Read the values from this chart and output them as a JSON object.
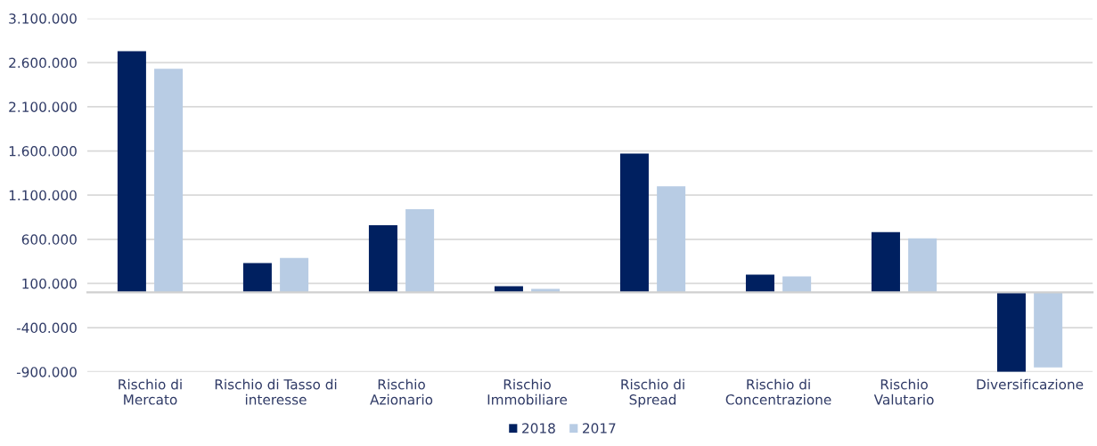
{
  "chart_data": {
    "type": "bar",
    "categories": [
      "Rischio di\nMercato",
      "Rischio di Tasso di\ninteresse",
      "Rischio\nAzionario",
      "Rischio\nImmobiliare",
      "Rischio di\nSpread",
      "Rischio di\nConcentrazione",
      "Rischio\nValutario",
      "Diversificazione"
    ],
    "series": [
      {
        "name": "2018",
        "color": "#002060",
        "values": [
          2730000,
          330000,
          760000,
          70000,
          1570000,
          200000,
          680000,
          -900000
        ]
      },
      {
        "name": "2017",
        "color": "#b8cce4",
        "values": [
          2530000,
          390000,
          940000,
          40000,
          1200000,
          180000,
          610000,
          -850000
        ]
      }
    ],
    "ylim": [
      -900000,
      3100000
    ],
    "yticks": [
      {
        "value": -900000,
        "label": "-900.000"
      },
      {
        "value": -400000,
        "label": "-400.000"
      },
      {
        "value": 100000,
        "label": "100.000"
      },
      {
        "value": 600000,
        "label": "600.000"
      },
      {
        "value": 1100000,
        "label": "1.100.000"
      },
      {
        "value": 1600000,
        "label": "1.600.000"
      },
      {
        "value": 2100000,
        "label": "2.100.000"
      },
      {
        "value": 2600000,
        "label": "2.600.000"
      },
      {
        "value": 3100000,
        "label": "3.100.000"
      }
    ],
    "grid": "y",
    "legend": "bottom"
  }
}
